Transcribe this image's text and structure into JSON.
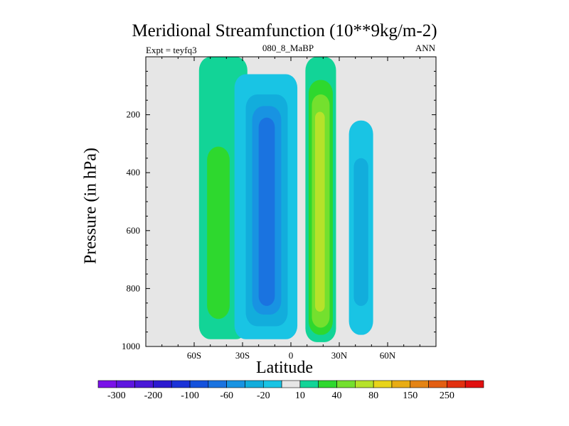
{
  "chart_data": {
    "type": "heatmap",
    "title": "Meridional Streamfunction (10**9kg/m-2)",
    "subtitle_left": "Expt = teyfq3",
    "subtitle_center": "080_8_MaBP",
    "subtitle_right": "ANN",
    "xlabel": "Latitude",
    "ylabel": "Pressure (in hPa)",
    "xlim": [
      -90,
      90
    ],
    "ylim": [
      1000,
      0
    ],
    "xticks": [
      {
        "value": -60,
        "label": "60S"
      },
      {
        "value": -30,
        "label": "30S"
      },
      {
        "value": 0,
        "label": "0"
      },
      {
        "value": 30,
        "label": "30N"
      },
      {
        "value": 60,
        "label": "60N"
      }
    ],
    "yticks": [
      {
        "value": 200,
        "label": "200"
      },
      {
        "value": 400,
        "label": "400"
      },
      {
        "value": 600,
        "label": "600"
      },
      {
        "value": 800,
        "label": "800"
      },
      {
        "value": 1000,
        "label": "1000"
      }
    ],
    "colorbar": {
      "colors": [
        "#7a12e8",
        "#5e16e0",
        "#4a18d8",
        "#2c1ad0",
        "#1c33d8",
        "#1451dc",
        "#1a73e0",
        "#1893e2",
        "#12addc",
        "#19c4e4",
        "#e6e6e6",
        "#12d497",
        "#2ed82e",
        "#74e02e",
        "#b6e22a",
        "#e8d41a",
        "#e8ac14",
        "#e48414",
        "#e35e12",
        "#e23010",
        "#e11010"
      ],
      "labels": [
        {
          "after_box": 1,
          "text": "-300"
        },
        {
          "after_box": 3,
          "text": "-200"
        },
        {
          "after_box": 5,
          "text": "-100"
        },
        {
          "after_box": 7,
          "text": "-60"
        },
        {
          "after_box": 9,
          "text": "-20"
        },
        {
          "after_box": 11,
          "text": "10"
        },
        {
          "after_box": 13,
          "text": "40"
        },
        {
          "after_box": 15,
          "text": "80"
        },
        {
          "after_box": 17,
          "text": "150"
        },
        {
          "after_box": 19,
          "text": "250"
        }
      ]
    },
    "background_color": "#e6e6e6",
    "regions": [
      {
        "name": "sh-polar-positive-cell",
        "color": "#12d497",
        "lat_range": [
          -57,
          -27
        ],
        "p_range": [
          0,
          975
        ],
        "level": "10-20"
      },
      {
        "name": "sh-polar-positive-core",
        "color": "#2ed82e",
        "lat_range": [
          -52,
          -38
        ],
        "p_range": [
          310,
          905
        ],
        "level": "20-40"
      },
      {
        "name": "southern-hadley-cell",
        "color": "#19c4e4",
        "lat_range": [
          -35,
          4
        ],
        "p_range": [
          60,
          975
        ],
        "level": "-10 to -20"
      },
      {
        "name": "southern-hadley-mid",
        "color": "#12addc",
        "lat_range": [
          -28,
          -2
        ],
        "p_range": [
          130,
          930
        ],
        "level": "-20 to -40"
      },
      {
        "name": "southern-hadley-inner",
        "color": "#1893e2",
        "lat_range": [
          -24,
          -6
        ],
        "p_range": [
          170,
          890
        ],
        "level": "-40 to -60"
      },
      {
        "name": "southern-hadley-core",
        "color": "#1a73e0",
        "lat_range": [
          -20,
          -10
        ],
        "p_range": [
          210,
          860
        ],
        "level": "-60 to -80"
      },
      {
        "name": "northern-hadley-cell",
        "color": "#12d497",
        "lat_range": [
          9,
          28
        ],
        "p_range": [
          0,
          985
        ],
        "level": "10-20"
      },
      {
        "name": "northern-hadley-mid",
        "color": "#2ed82e",
        "lat_range": [
          11,
          26
        ],
        "p_range": [
          80,
          960
        ],
        "level": "20-40"
      },
      {
        "name": "northern-hadley-inner",
        "color": "#74e02e",
        "lat_range": [
          13,
          24
        ],
        "p_range": [
          130,
          935
        ],
        "level": "40-60"
      },
      {
        "name": "northern-hadley-core",
        "color": "#b6e22a",
        "lat_range": [
          15,
          21
        ],
        "p_range": [
          190,
          880
        ],
        "level": "60-80"
      },
      {
        "name": "nh-ferrel-negative-cell",
        "color": "#19c4e4",
        "lat_range": [
          36,
          51
        ],
        "p_range": [
          220,
          960
        ],
        "level": "-10 to -20"
      },
      {
        "name": "nh-ferrel-negative-core",
        "color": "#12addc",
        "lat_range": [
          39,
          48
        ],
        "p_range": [
          350,
          860
        ],
        "level": "-20 to -40"
      }
    ]
  }
}
